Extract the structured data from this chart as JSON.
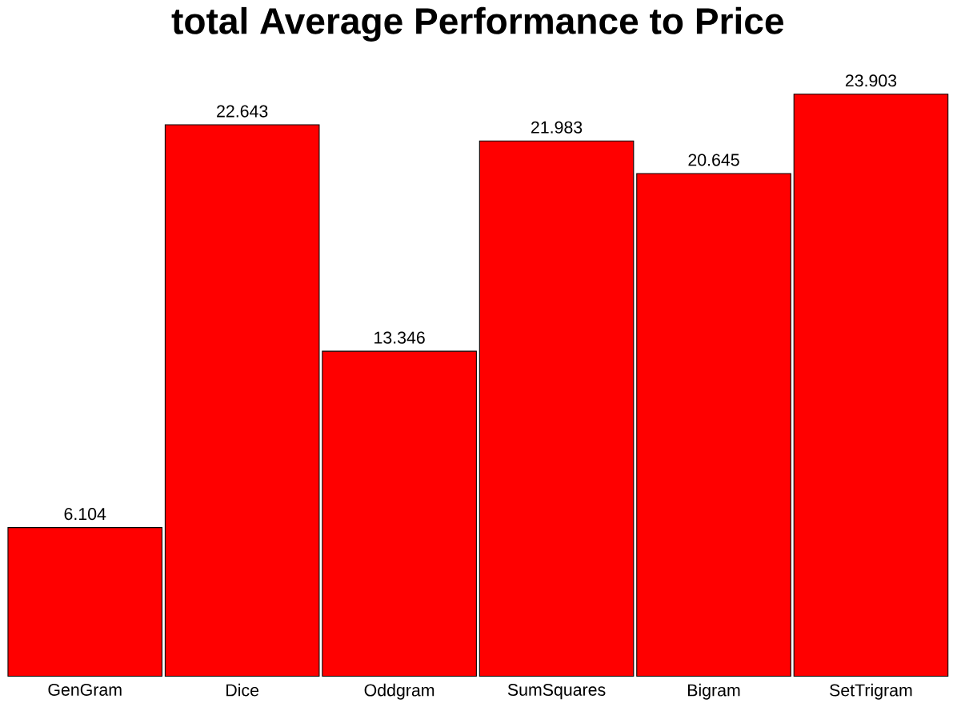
{
  "chart_data": {
    "type": "bar",
    "title": "total Average Performance to Price",
    "categories": [
      "GenGram",
      "Dice",
      "Oddgram",
      "SumSquares",
      "Bigram",
      "SetTrigram"
    ],
    "values": [
      6.104,
      22.643,
      13.346,
      21.983,
      20.645,
      23.903
    ],
    "color": "#ff0000",
    "tick_labels": "x",
    "data_labels": true
  }
}
